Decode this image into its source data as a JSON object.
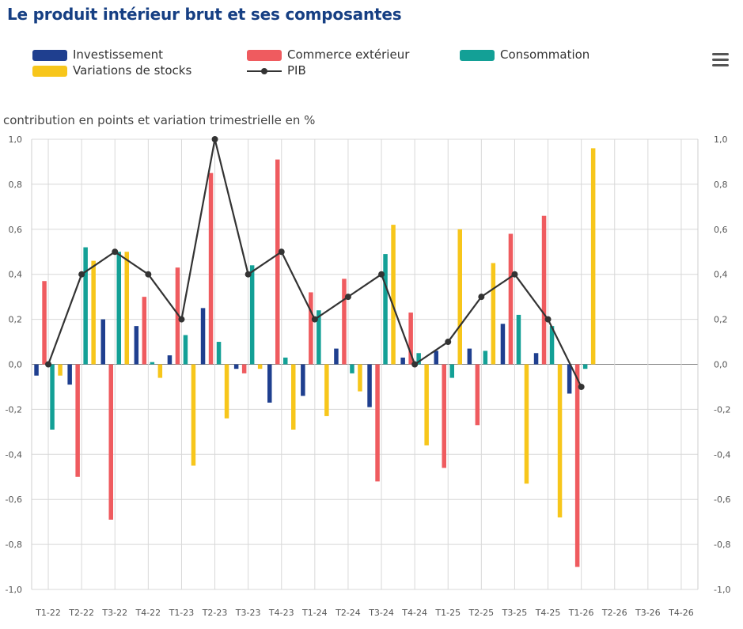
{
  "header": {
    "title": "Le produit intérieur brut et ses composantes",
    "menu_icon": "hamburger-menu-icon"
  },
  "legend": [
    {
      "label": "Investissement",
      "color": "#1f3f8f",
      "kind": "bar"
    },
    {
      "label": "Commerce extérieur",
      "color": "#ef5b5f",
      "kind": "bar"
    },
    {
      "label": "Consommation",
      "color": "#13a096",
      "kind": "bar"
    },
    {
      "label": "Variations de stocks",
      "color": "#f7c61b",
      "kind": "bar"
    },
    {
      "label": "PIB",
      "color": "#333333",
      "kind": "line"
    }
  ],
  "chart_data": {
    "type": "bar",
    "title": "Le produit intérieur brut et ses composantes",
    "ylabel": "contribution en points et variation trimestrielle en %",
    "ylim": [
      -1.0,
      1.0
    ],
    "yticks": [
      "1,0",
      "0,8",
      "0,6",
      "0,4",
      "0,2",
      "0,0",
      "-0,2",
      "-0,4",
      "-0,6",
      "-0,8",
      "-1,0"
    ],
    "ytick_values": [
      1.0,
      0.8,
      0.6,
      0.4,
      0.2,
      0.0,
      -0.2,
      -0.4,
      -0.6,
      -0.8,
      -1.0
    ],
    "grid": true,
    "legend_position": "top",
    "categories": [
      "T1-22",
      "T2-22",
      "T3-22",
      "T4-22",
      "T1-23",
      "T2-23",
      "T3-23",
      "T4-23",
      "T1-24",
      "T2-24",
      "T3-24",
      "T4-24",
      "T1-25",
      "T2-25",
      "T3-25",
      "T4-25",
      "T1-26",
      "T2-26",
      "T3-26",
      "T4-26"
    ],
    "series": [
      {
        "name": "Investissement",
        "type": "bar",
        "color": "#1f3f8f",
        "values": [
          -0.05,
          -0.09,
          0.2,
          0.17,
          0.04,
          0.25,
          -0.02,
          -0.17,
          -0.14,
          0.07,
          -0.19,
          0.03,
          0.06,
          0.07,
          0.18,
          0.05,
          -0.13,
          null,
          null,
          null
        ]
      },
      {
        "name": "Commerce extérieur",
        "type": "bar",
        "color": "#ef5b5f",
        "values": [
          0.37,
          -0.5,
          -0.69,
          0.3,
          0.43,
          0.85,
          -0.04,
          0.91,
          0.32,
          0.38,
          -0.52,
          0.23,
          -0.46,
          -0.27,
          0.58,
          0.66,
          -0.9,
          null,
          null,
          null
        ]
      },
      {
        "name": "Consommation",
        "type": "bar",
        "color": "#13a096",
        "values": [
          -0.29,
          0.52,
          0.5,
          0.01,
          0.13,
          0.1,
          0.44,
          0.03,
          0.24,
          -0.04,
          0.49,
          0.05,
          -0.06,
          0.06,
          0.22,
          0.17,
          -0.02,
          null,
          null,
          null
        ]
      },
      {
        "name": "Variations de stocks",
        "type": "bar",
        "color": "#f7c61b",
        "values": [
          -0.05,
          0.46,
          0.5,
          -0.06,
          -0.45,
          -0.24,
          -0.02,
          -0.29,
          -0.23,
          -0.12,
          0.62,
          -0.36,
          0.6,
          0.45,
          -0.53,
          -0.68,
          0.96,
          null,
          null,
          null
        ]
      },
      {
        "name": "PIB",
        "type": "line",
        "color": "#333333",
        "values": [
          0.0,
          0.4,
          0.5,
          0.4,
          0.2,
          1.0,
          0.4,
          0.5,
          0.2,
          0.3,
          0.4,
          0.0,
          0.1,
          0.3,
          0.4,
          0.2,
          -0.1,
          null,
          null,
          null
        ]
      }
    ]
  }
}
